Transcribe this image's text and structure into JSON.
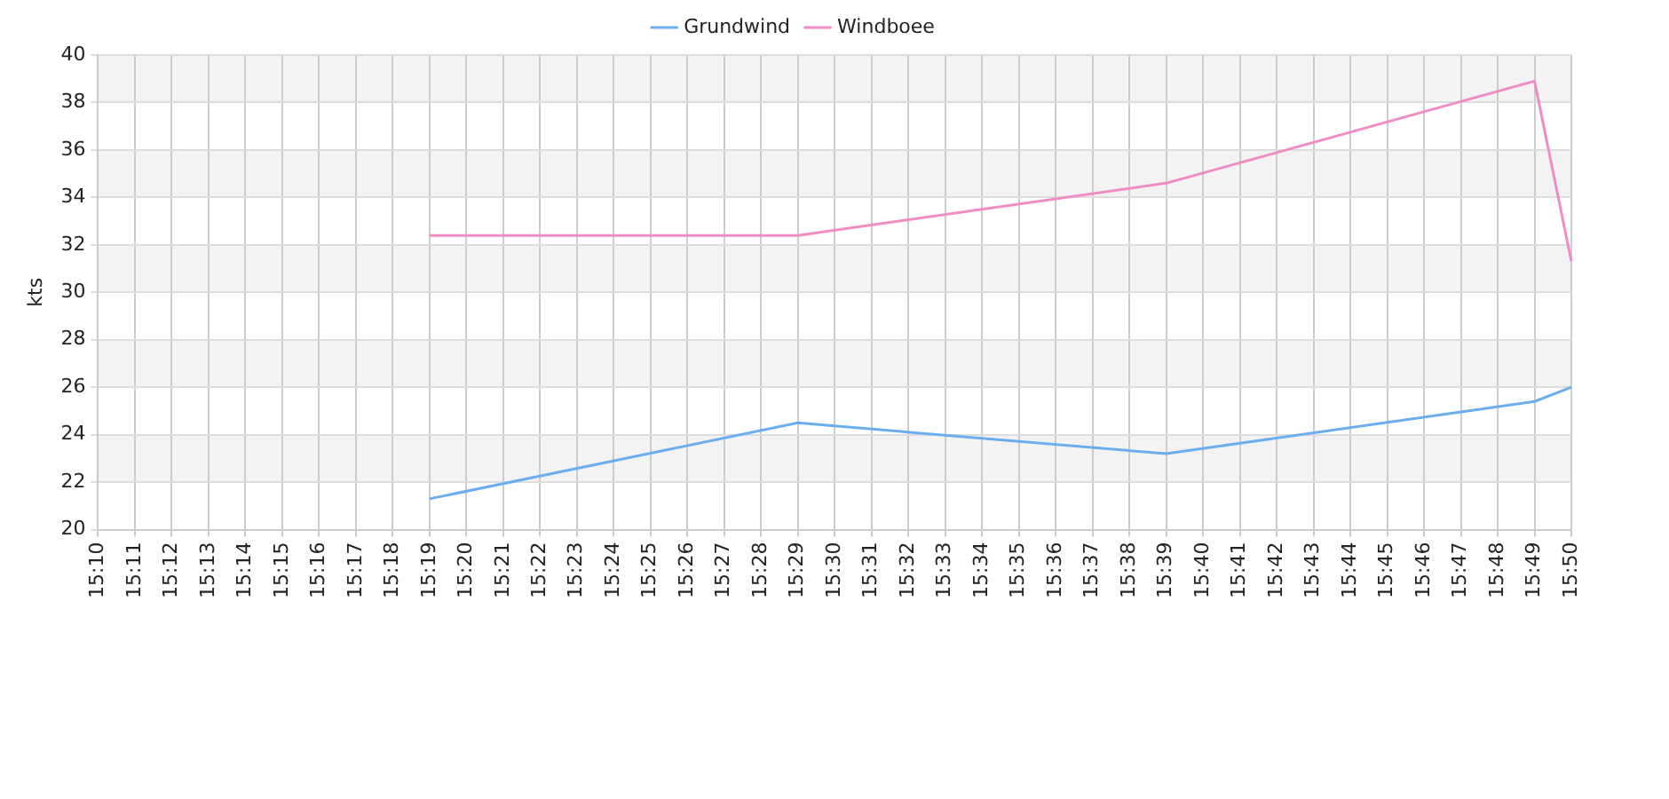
{
  "chart_data": {
    "type": "line",
    "ylabel": "kts",
    "categories": [
      "15:10",
      "15:11",
      "15:12",
      "15:13",
      "15:14",
      "15:15",
      "15:16",
      "15:17",
      "15:18",
      "15:19",
      "15:20",
      "15:21",
      "15:22",
      "15:23",
      "15:24",
      "15:25",
      "15:26",
      "15:27",
      "15:28",
      "15:29",
      "15:30",
      "15:31",
      "15:32",
      "15:33",
      "15:34",
      "15:35",
      "15:36",
      "15:37",
      "15:38",
      "15:39",
      "15:40",
      "15:41",
      "15:42",
      "15:43",
      "15:44",
      "15:45",
      "15:46",
      "15:47",
      "15:48",
      "15:49",
      "15:50"
    ],
    "series": [
      {
        "name": "Grundwind",
        "color": "#6aaef0",
        "values": [
          null,
          null,
          null,
          null,
          null,
          null,
          null,
          null,
          null,
          21.3,
          null,
          null,
          null,
          null,
          null,
          null,
          null,
          null,
          null,
          24.5,
          null,
          null,
          null,
          null,
          null,
          null,
          null,
          null,
          null,
          23.2,
          null,
          null,
          null,
          null,
          null,
          null,
          null,
          null,
          null,
          25.4,
          26.0
        ]
      },
      {
        "name": "Windboee",
        "color": "#f08cc4",
        "values": [
          null,
          null,
          null,
          null,
          null,
          null,
          null,
          null,
          null,
          32.4,
          null,
          null,
          null,
          null,
          null,
          null,
          null,
          null,
          null,
          32.4,
          null,
          null,
          null,
          null,
          null,
          null,
          null,
          null,
          null,
          34.6,
          null,
          null,
          null,
          null,
          null,
          null,
          null,
          null,
          null,
          38.9,
          31.3
        ]
      }
    ],
    "ylim": [
      20,
      40
    ],
    "yticks": [
      20,
      22,
      24,
      26,
      28,
      30,
      32,
      34,
      36,
      38,
      40
    ],
    "grid": true,
    "legend": "top",
    "marker": "none",
    "line_style": "solid"
  }
}
